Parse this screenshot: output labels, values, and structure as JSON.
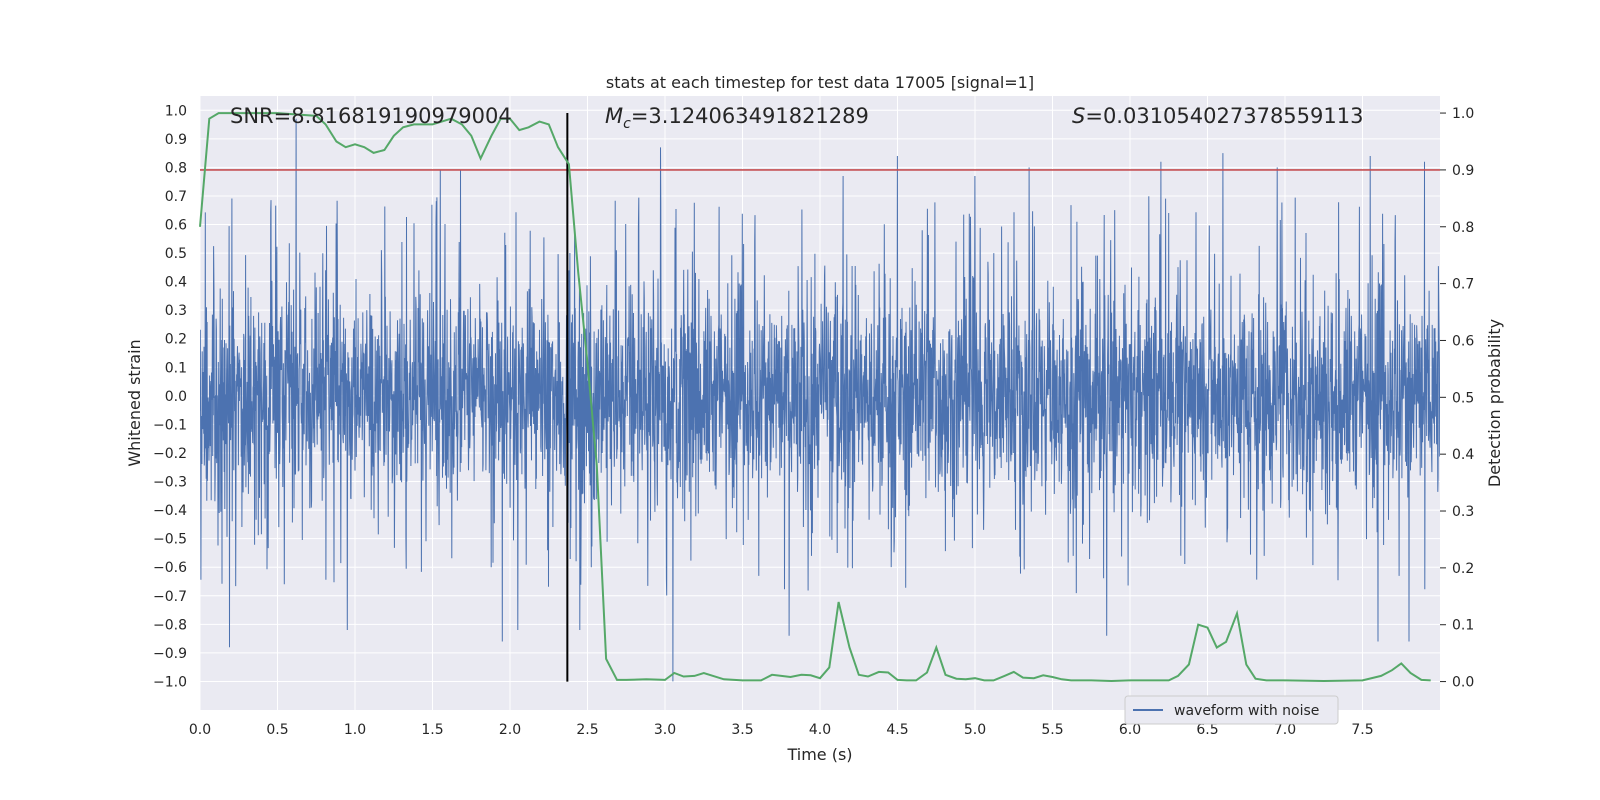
{
  "colors": {
    "waveform": "#4c72b0",
    "probability": "#55a868",
    "threshold": "#c44e52",
    "marker": "#000000",
    "plot_bg": "#eaeaf2",
    "grid": "#ffffff"
  },
  "chart_data": {
    "type": "line",
    "title": "stats at each timestep for test data 17005 [signal=1]",
    "xlabel": "Time (s)",
    "ylabel": "Whitened strain",
    "y2label": "Detection probability",
    "xlim": [
      0.0,
      8.0
    ],
    "ylim": [
      -1.1,
      1.05
    ],
    "y2lim": [
      -0.05,
      1.03
    ],
    "x_ticks": [
      "0.0",
      "0.5",
      "1.0",
      "1.5",
      "2.0",
      "2.5",
      "3.0",
      "3.5",
      "4.0",
      "4.5",
      "5.0",
      "5.5",
      "6.0",
      "6.5",
      "7.0",
      "7.5"
    ],
    "y_ticks": [
      "1.0",
      "0.9",
      "0.8",
      "0.7",
      "0.6",
      "0.5",
      "0.4",
      "0.3",
      "0.2",
      "0.1",
      "0.0",
      "−0.1",
      "−0.2",
      "−0.3",
      "−0.4",
      "−0.5",
      "−0.6",
      "−0.7",
      "−0.8",
      "−0.9",
      "−1.0"
    ],
    "y2_ticks": [
      "1.0",
      "0.9",
      "0.8",
      "0.7",
      "0.6",
      "0.5",
      "0.4",
      "0.3",
      "0.2",
      "0.1",
      "0.0"
    ],
    "grid": true,
    "legend": {
      "label": "waveform with noise",
      "position": "lower-right"
    },
    "annotations": {
      "snr": "SNR=8.816819190979004",
      "mc_symbol": "M",
      "mc_sub": "c",
      "mc_value": "=3.124063491821289",
      "s_symbol": "S",
      "s_value": "=0.031054027378559113"
    },
    "threshold_level": 0.9,
    "signal_marker_time": 2.37,
    "waveform": {
      "name": "waveform with noise",
      "base_amplitude": 0.32,
      "y_min": -1.0,
      "y_max": 0.97,
      "peaks": [
        {
          "t": 0.19,
          "v": -0.88
        },
        {
          "t": 0.62,
          "v": 0.97
        },
        {
          "t": 0.95,
          "v": -0.82
        },
        {
          "t": 1.55,
          "v": 0.79
        },
        {
          "t": 1.68,
          "v": 0.79
        },
        {
          "t": 1.95,
          "v": -0.86
        },
        {
          "t": 2.05,
          "v": -0.82
        },
        {
          "t": 2.45,
          "v": -0.82
        },
        {
          "t": 2.97,
          "v": 0.87
        },
        {
          "t": 3.05,
          "v": -1.0
        },
        {
          "t": 3.8,
          "v": -0.84
        },
        {
          "t": 4.15,
          "v": 0.77
        },
        {
          "t": 4.5,
          "v": 0.84
        },
        {
          "t": 5.0,
          "v": 0.77
        },
        {
          "t": 5.35,
          "v": 0.8
        },
        {
          "t": 5.85,
          "v": -0.84
        },
        {
          "t": 6.2,
          "v": 0.82
        },
        {
          "t": 6.6,
          "v": 0.85
        },
        {
          "t": 6.95,
          "v": 0.8
        },
        {
          "t": 7.55,
          "v": 0.84
        },
        {
          "t": 7.6,
          "v": -0.86
        },
        {
          "t": 7.8,
          "v": -0.86
        },
        {
          "t": 7.9,
          "v": 0.82
        }
      ]
    },
    "series": [
      {
        "name": "detection probability",
        "axis": "right",
        "x": [
          0.0,
          0.06,
          0.12,
          0.25,
          0.5,
          0.75,
          0.81,
          0.88,
          0.94,
          1.0,
          1.06,
          1.12,
          1.19,
          1.25,
          1.31,
          1.38,
          1.5,
          1.62,
          1.69,
          1.75,
          1.81,
          1.88,
          1.94,
          2.0,
          2.06,
          2.12,
          2.19,
          2.25,
          2.31,
          2.38,
          2.44,
          2.5,
          2.56,
          2.62,
          2.69,
          2.75,
          2.88,
          3.0,
          3.06,
          3.12,
          3.19,
          3.25,
          3.38,
          3.5,
          3.62,
          3.69,
          3.75,
          3.81,
          3.88,
          3.94,
          4.0,
          4.06,
          4.12,
          4.19,
          4.25,
          4.31,
          4.38,
          4.44,
          4.5,
          4.56,
          4.62,
          4.69,
          4.75,
          4.81,
          4.88,
          4.94,
          5.0,
          5.06,
          5.12,
          5.19,
          5.25,
          5.31,
          5.38,
          5.44,
          5.5,
          5.56,
          5.62,
          5.75,
          5.88,
          6.0,
          6.25,
          6.31,
          6.38,
          6.44,
          6.5,
          6.56,
          6.62,
          6.69,
          6.75,
          6.81,
          6.88,
          6.94,
          7.0,
          7.25,
          7.5,
          7.62,
          7.69,
          7.75,
          7.81,
          7.88,
          7.94
        ],
        "values": [
          0.8,
          0.99,
          1.0,
          1.0,
          1.0,
          0.995,
          0.98,
          0.95,
          0.94,
          0.945,
          0.94,
          0.93,
          0.935,
          0.96,
          0.975,
          0.98,
          0.98,
          0.99,
          0.98,
          0.96,
          0.92,
          0.96,
          0.99,
          0.99,
          0.97,
          0.975,
          0.985,
          0.98,
          0.94,
          0.91,
          0.72,
          0.56,
          0.38,
          0.04,
          0.003,
          0.003,
          0.004,
          0.003,
          0.015,
          0.009,
          0.01,
          0.015,
          0.004,
          0.002,
          0.002,
          0.012,
          0.01,
          0.008,
          0.012,
          0.011,
          0.006,
          0.025,
          0.14,
          0.06,
          0.012,
          0.009,
          0.017,
          0.016,
          0.003,
          0.002,
          0.002,
          0.016,
          0.06,
          0.012,
          0.005,
          0.004,
          0.006,
          0.002,
          0.002,
          0.01,
          0.017,
          0.007,
          0.006,
          0.011,
          0.008,
          0.004,
          0.002,
          0.002,
          0.001,
          0.002,
          0.002,
          0.01,
          0.03,
          0.1,
          0.095,
          0.06,
          0.07,
          0.12,
          0.03,
          0.005,
          0.002,
          0.002,
          0.002,
          0.001,
          0.002,
          0.01,
          0.02,
          0.032,
          0.015,
          0.003,
          0.002
        ]
      }
    ]
  }
}
